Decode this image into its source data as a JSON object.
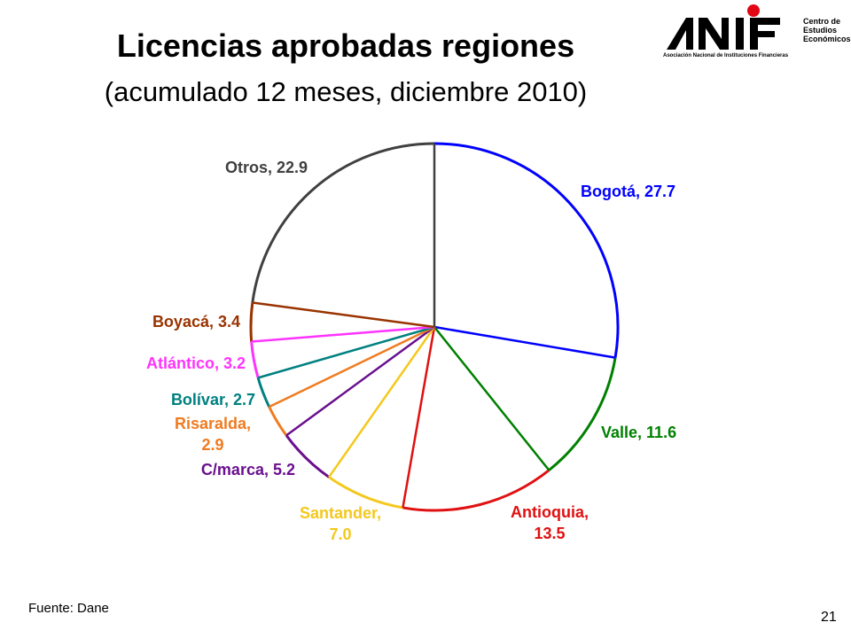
{
  "title": "Licencias aprobadas regiones",
  "subtitle": "(acumulado 12 meses, diciembre 2010)",
  "logo": {
    "wordmark": "ANIF",
    "tagline": "Asociación Nacional de Instituciones Financieras",
    "center_lines": [
      "Centro de",
      "Estudios",
      "Económicos"
    ],
    "dot_color": "#e30613"
  },
  "source": "Fuente: Dane",
  "page_number": "21",
  "chart_data": {
    "type": "pie",
    "start": "top",
    "direction": "clockwise",
    "slices": [
      {
        "name": "Bogotá",
        "value": 27.7,
        "label": "Bogotá, 27.7",
        "color": "#0000ff"
      },
      {
        "name": "Valle",
        "value": 11.6,
        "label": "Valle, 11.6",
        "color": "#008000"
      },
      {
        "name": "Antioquia",
        "value": 13.5,
        "label": "Antioquia,|13.5",
        "color": "#e01010"
      },
      {
        "name": "Santander",
        "value": 7.0,
        "label": "Santander,|7.0",
        "color": "#f4c81c"
      },
      {
        "name": "C/marca",
        "value": 5.2,
        "label": "C/marca, 5.2",
        "color": "#6a0f8e"
      },
      {
        "name": "Risaralda",
        "value": 2.9,
        "label": "Risaralda,|2.9",
        "color": "#f07b20"
      },
      {
        "name": "Bolívar",
        "value": 2.7,
        "label": "Bolívar, 2.7",
        "color": "#008080"
      },
      {
        "name": "Atlántico",
        "value": 3.2,
        "label": "Atlántico, 3.2",
        "color": "#ff33ff"
      },
      {
        "name": "Boyacá",
        "value": 3.4,
        "label": "Boyacá, 3.4",
        "color": "#993300"
      },
      {
        "name": "Otros",
        "value": 22.9,
        "label": "Otros, 22.9",
        "color": "#404040"
      }
    ]
  }
}
